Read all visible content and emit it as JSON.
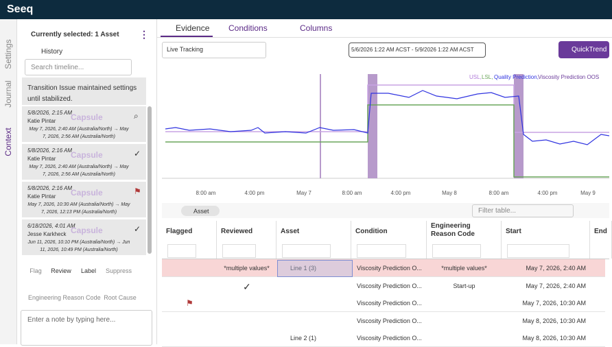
{
  "header": {
    "logo": "Seeq"
  },
  "side_tabs": [
    "Settings",
    "Journal",
    "Context"
  ],
  "panel": {
    "title": "Currently selected: 1 Asset",
    "history": "History",
    "search_placeholder": "Search timeline...",
    "note": "Transition Issue maintained settings until stabilized.",
    "entries": [
      {
        "date": "5/8/2026, 2:15 AM",
        "author": "Katie Pintar",
        "tag": "Capsule",
        "range": "May 7, 2026, 2:40 AM (Australia/North) → May 7, 2026, 2:56 AM (Australia/North)"
      },
      {
        "date": "5/8/2026, 2:16 AM",
        "author": "Katie Pintar",
        "tag": "Capsule",
        "range": "May 7, 2026, 2:40 AM (Australia/North) → May 7, 2026, 2:56 AM (Australia/North)"
      },
      {
        "date": "5/8/2026, 2:16 AM",
        "author": "Katie Pintar",
        "tag": "Capsule",
        "range": "May 7, 2026, 10:30 AM (Australia/North) → May 7, 2026, 12:13 PM (Australia/North)"
      },
      {
        "date": "6/18/2026, 4:01 AM",
        "author": "Jesse Karkheck",
        "tag": "Capsule",
        "range": "Jun 11, 2026, 10:10 PM (Australia/North) → Jun 11, 2026, 10:49 PM (Australia/North)"
      }
    ],
    "actions": [
      "Flag",
      "Review",
      "Label",
      "Suppress",
      "Engineering Reason Code",
      "Root Cause"
    ],
    "note_placeholder": "Enter a note by typing here..."
  },
  "tabs": [
    "Evidence",
    "Conditions",
    "Columns"
  ],
  "toolbar": {
    "mode": "Live Tracking",
    "date_range": "5/6/2026 1:22 AM  ACST - 5/9/2026 1:22 AM  ACST",
    "button": "QuickTrend"
  },
  "legend": [
    "USL,",
    "LSL,",
    "Quality Prediction,",
    "Viscosity Prediction OOS"
  ],
  "x_labels": [
    "8:00 am",
    "4:00 pm",
    "May 7",
    "8:00 am",
    "4:00 pm",
    "May 8",
    "8:00 am",
    "4:00 pm",
    "May 9"
  ],
  "table": {
    "chip": "Asset",
    "filter_placeholder": "Filter table...",
    "columns": [
      "Flagged",
      "Reviewed",
      "Asset",
      "Condition",
      "Engineering Reason Code",
      "Start",
      "End"
    ],
    "rows": [
      {
        "reviewed": "*multiple values*",
        "asset": "Line 1 (3)",
        "condition": "Viscosity Prediction O...",
        "reason": "*multiple values*",
        "start": "May 7, 2026, 2:40 AM"
      },
      {
        "condition": "Viscosity Prediction O...",
        "reason": "Start-up",
        "start": "May 7, 2026, 2:40 AM"
      },
      {
        "condition": "Viscosity Prediction O...",
        "start": "May 7, 2026, 10:30 AM"
      },
      {
        "condition": "Viscosity Prediction O...",
        "start": "May 8, 2026, 10:30 AM"
      },
      {
        "asset": "Line 2 (1)",
        "condition": "Viscosity Prediction O...",
        "start": "May 8, 2026, 10:30 AM"
      }
    ]
  }
}
